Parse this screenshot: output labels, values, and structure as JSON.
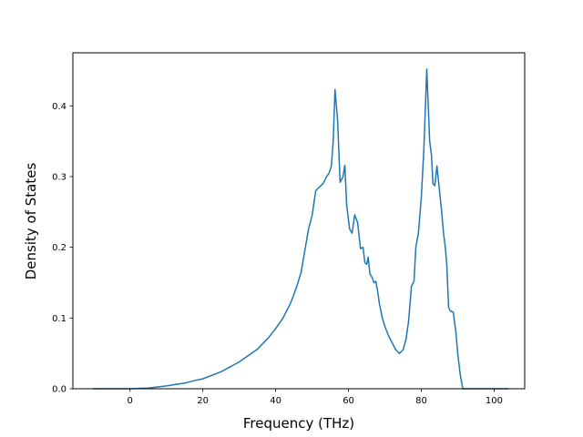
{
  "chart_data": {
    "type": "line",
    "title": "",
    "xlabel": "Frequency (THz)",
    "ylabel": "Density of States",
    "xlim": [
      -15.7,
      108.4
    ],
    "ylim": [
      0.0,
      0.475
    ],
    "xticks": [
      0,
      20,
      40,
      60,
      80,
      100
    ],
    "yticks": [
      0.0,
      0.1,
      0.2,
      0.3,
      0.4
    ],
    "xtick_labels": [
      "0",
      "20",
      "40",
      "60",
      "80",
      "100"
    ],
    "ytick_labels": [
      "0.0",
      "0.1",
      "0.2",
      "0.3",
      "0.4"
    ],
    "grid": false,
    "legend": "none",
    "series": [
      {
        "color": "#1f77b4",
        "x": [
          -10,
          -5,
          0,
          5,
          10,
          15,
          18,
          20,
          25,
          30,
          35,
          38,
          40,
          42,
          44,
          45,
          46,
          47,
          48,
          49,
          50,
          51,
          52,
          53,
          54,
          54.7,
          55.3,
          55.8,
          56.3,
          57,
          57.7,
          58.5,
          59,
          59.5,
          60.3,
          61,
          61.7,
          62.5,
          63.3,
          64,
          64.5,
          65,
          65.4,
          65.9,
          66.2,
          66.6,
          67,
          67.5,
          68,
          68.5,
          69.3,
          70,
          71,
          72,
          73,
          74,
          75,
          75.8,
          76.5,
          77.3,
          78,
          78.5,
          79.2,
          80,
          80.7,
          81.5,
          82.3,
          82.8,
          83.2,
          83.7,
          84.3,
          85,
          85.6,
          86.1,
          86.6,
          87,
          87.5,
          88,
          88.8,
          89.5,
          90,
          90.7,
          91.4,
          92,
          92.6,
          93.3,
          94,
          94.5,
          96,
          100,
          103.7
        ],
        "y": [
          0.0,
          0.0,
          0.0,
          0.001,
          0.004,
          0.008,
          0.012,
          0.014,
          0.024,
          0.038,
          0.056,
          0.072,
          0.085,
          0.1,
          0.12,
          0.133,
          0.148,
          0.165,
          0.195,
          0.225,
          0.245,
          0.28,
          0.285,
          0.29,
          0.3,
          0.305,
          0.315,
          0.35,
          0.423,
          0.38,
          0.292,
          0.3,
          0.316,
          0.26,
          0.226,
          0.22,
          0.246,
          0.235,
          0.198,
          0.2,
          0.178,
          0.176,
          0.186,
          0.162,
          0.16,
          0.156,
          0.15,
          0.152,
          0.138,
          0.12,
          0.1,
          0.088,
          0.075,
          0.065,
          0.055,
          0.05,
          0.055,
          0.07,
          0.095,
          0.145,
          0.152,
          0.2,
          0.22,
          0.27,
          0.338,
          0.452,
          0.35,
          0.33,
          0.29,
          0.287,
          0.315,
          0.28,
          0.25,
          0.22,
          0.2,
          0.175,
          0.115,
          0.11,
          0.108,
          0.08,
          0.05,
          0.02,
          0.0,
          0.0,
          0.0,
          0.0,
          0.0,
          0.0,
          0.0,
          0.0,
          0.0
        ]
      }
    ]
  }
}
